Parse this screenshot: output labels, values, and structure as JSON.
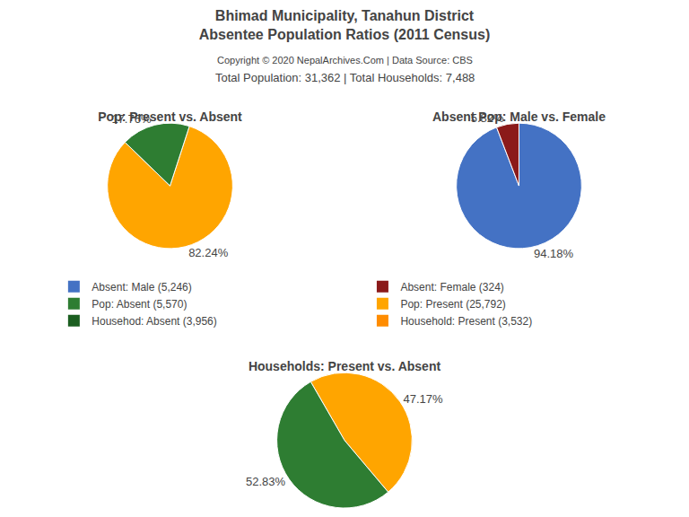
{
  "title": "Bhimad Municipality, Tanahun District",
  "subtitle": "Absentee Population Ratios (2011 Census)",
  "annotations": [
    "Copyright © 2020 NepalArchives.Com | Data Source: CBS",
    "Total Population: 31,362 | Total Households: 7,488"
  ],
  "legend_items": [
    {
      "name": "Absent: Male (5,246)",
      "color": "#4472C4"
    },
    {
      "name": "Absent: Female (324)",
      "color": "#8B1A1A"
    },
    {
      "name": "Pop: Absent (5,570)",
      "color": "#2E7D32"
    },
    {
      "name": "Pop: Present (25,792)",
      "color": "#FFA500"
    },
    {
      "name": "Househod: Absent (3,956)",
      "color": "#1B5E20"
    },
    {
      "name": "Household: Present (3,532)",
      "color": "#FF8C00"
    }
  ],
  "chart_data": [
    {
      "type": "pie",
      "title": "Pop: Present vs. Absent",
      "values": [
        82.24,
        17.76
      ],
      "value_labels": [
        "82.24%",
        "17.76%"
      ],
      "colors": [
        "#FFA500",
        "#2E7D32"
      ],
      "data_labels": true
    },
    {
      "type": "pie",
      "title": "Absent Pop: Male vs. Female",
      "values": [
        94.18,
        5.82
      ],
      "value_labels": [
        "94.18%",
        "5.82%"
      ],
      "colors": [
        "#4472C4",
        "#8B1A1A"
      ],
      "data_labels": true
    },
    {
      "type": "pie",
      "title": "Households: Present vs. Absent",
      "values": [
        47.17,
        52.83
      ],
      "value_labels": [
        "47.17%",
        "52.83%"
      ],
      "colors": [
        "#FFA500",
        "#2E7D32"
      ],
      "data_labels": true
    }
  ]
}
